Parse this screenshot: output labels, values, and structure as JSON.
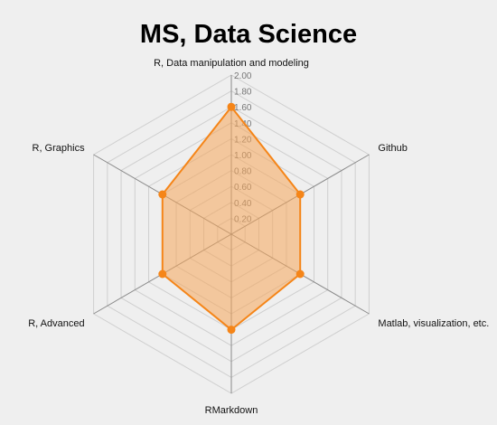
{
  "chart_data": {
    "type": "radar",
    "title": "MS, Data Science",
    "axes": [
      "R, Data manipulation and modeling",
      "Github",
      "Matlab, visualization, etc.",
      "RMarkdown",
      "R, Advanced",
      "R, Graphics"
    ],
    "values": [
      1.6,
      1.0,
      1.0,
      1.2,
      1.0,
      1.0
    ],
    "rlim": [
      0,
      2.0
    ],
    "ticks": [
      "0.20",
      "0.40",
      "0.60",
      "0.80",
      "1.00",
      "1.20",
      "1.40",
      "1.60",
      "1.80",
      "2.00"
    ],
    "grid": true,
    "colors": {
      "stroke": "#f58518",
      "fill": "#f5a55a",
      "fill_opacity": 0.55,
      "point": "#f58518"
    }
  }
}
